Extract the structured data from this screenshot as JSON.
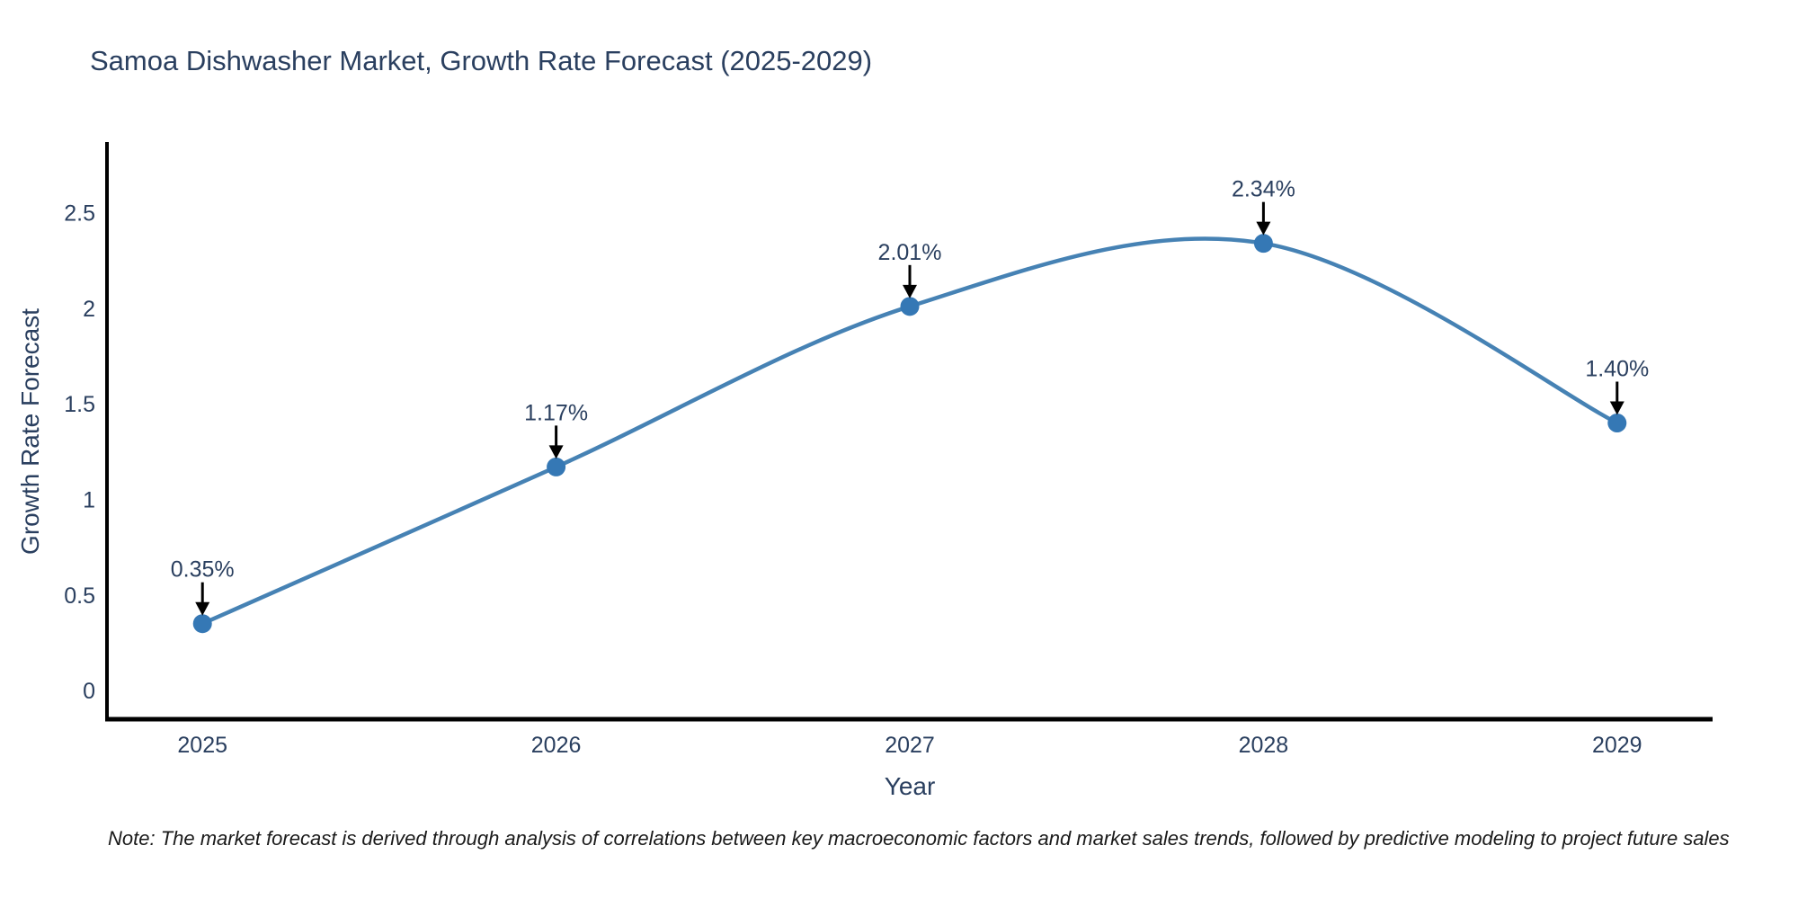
{
  "note": "Note: The market forecast is derived through analysis of correlations between key macroeconomic factors and market sales trends, followed by predictive modeling to project future sales",
  "chart_data": {
    "type": "line",
    "title": "Samoa Dishwasher Market, Growth Rate Forecast (2025-2029)",
    "xlabel": "Year",
    "ylabel": "Growth Rate Forecast",
    "x": [
      2025,
      2026,
      2027,
      2028,
      2029
    ],
    "values": [
      0.35,
      1.17,
      2.01,
      2.34,
      1.4
    ],
    "point_labels": [
      "0.35%",
      "1.17%",
      "2.01%",
      "2.34%",
      "1.40%"
    ],
    "xtick_labels": [
      "2025",
      "2026",
      "2027",
      "2028",
      "2029"
    ],
    "yticks": [
      0,
      0.5,
      1,
      1.5,
      2,
      2.5
    ],
    "ytick_labels": [
      "0",
      "0.5",
      "1",
      "1.5",
      "2",
      "2.5"
    ],
    "xlim": [
      2024.73,
      2029.27
    ],
    "ylim": [
      -0.15,
      2.87
    ],
    "grid": false,
    "legend": "none",
    "line_shape": "spline",
    "markers": true,
    "annotation_arrows": true,
    "colors": {
      "line": "#4682b4",
      "marker": "#3578b5",
      "axis": "#000000",
      "chart_text": "#2a3f5f",
      "arrow": "#000000",
      "background": "#ffffff"
    }
  }
}
